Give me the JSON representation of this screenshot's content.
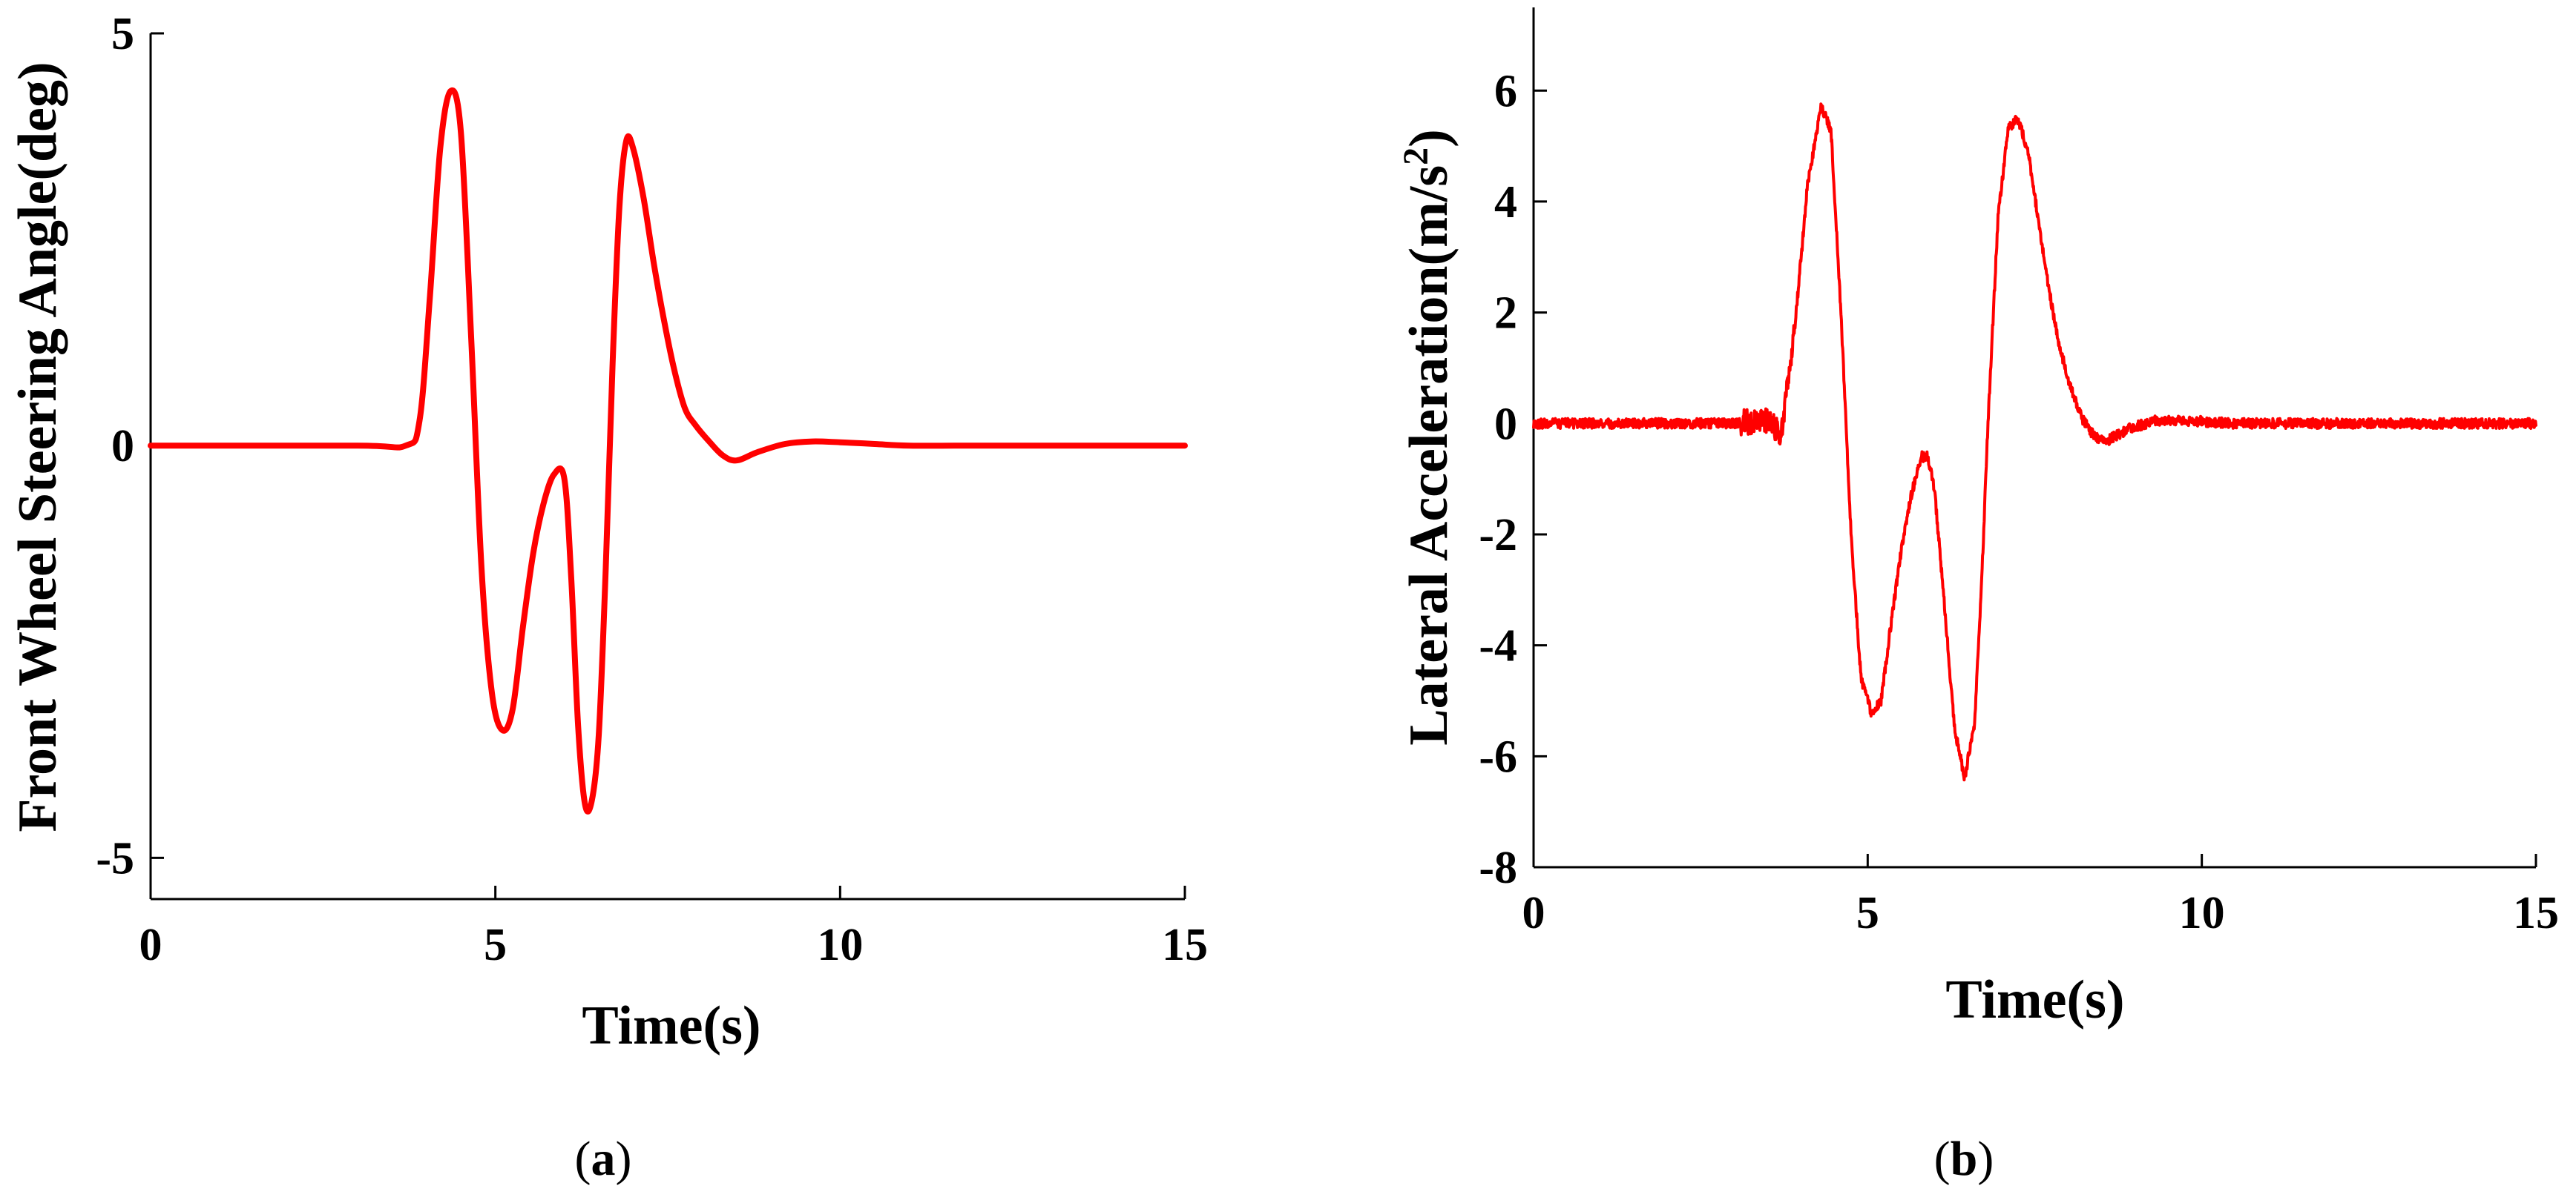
{
  "colors": {
    "line": "#ff0000",
    "axis": "#000000",
    "background": "#ffffff"
  },
  "chart_data": [
    {
      "type": "line",
      "panel_label": "(a)",
      "panel_letter": "a",
      "xlabel": "Time(s)",
      "ylabel": "Front Wheel Steering Angle(deg)",
      "ylabel_sup": "",
      "ylabel_tail": "",
      "xlim": [
        0,
        15
      ],
      "ylim": [
        -5.5,
        5
      ],
      "xticks": [
        0,
        5,
        10,
        15
      ],
      "xtick_labels": [
        "0",
        "5",
        "10",
        "15"
      ],
      "yticks": [
        -5,
        0,
        5
      ],
      "ytick_labels": [
        "-5",
        "0",
        "5"
      ],
      "grid": false,
      "series": [
        {
          "x": [
            0,
            3.0,
            3.7,
            3.9,
            4.05,
            4.2,
            4.35,
            4.5,
            4.65,
            4.8,
            4.95,
            5.1,
            5.25,
            5.4,
            5.55,
            5.7,
            5.85,
            6.0,
            6.1,
            6.2,
            6.3,
            6.4,
            6.5,
            6.6,
            6.7,
            6.8,
            6.9,
            7.0,
            7.15,
            7.3,
            7.45,
            7.6,
            7.75,
            7.9,
            8.1,
            8.3,
            8.5,
            8.8,
            9.2,
            9.6,
            10.0,
            10.5,
            11.0,
            12.0,
            13.0,
            14.0,
            15.0
          ],
          "y": [
            0,
            0,
            0,
            0.3,
            1.8,
            3.6,
            4.3,
            3.8,
            1.3,
            -1.5,
            -3.0,
            -3.45,
            -3.2,
            -2.2,
            -1.3,
            -0.7,
            -0.35,
            -0.4,
            -1.6,
            -3.4,
            -4.35,
            -4.3,
            -3.5,
            -1.5,
            1.0,
            2.9,
            3.7,
            3.6,
            3.0,
            2.2,
            1.5,
            0.9,
            0.45,
            0.25,
            0.05,
            -0.12,
            -0.18,
            -0.08,
            0.02,
            0.05,
            0.04,
            0.02,
            0.0,
            0.0,
            0.0,
            0.0,
            0.0
          ]
        }
      ]
    },
    {
      "type": "line",
      "panel_label": "(b)",
      "panel_letter": "b",
      "xlabel": "Time(s)",
      "ylabel": "Lateral Acceleration(m/s",
      "ylabel_sup": "2",
      "ylabel_tail": ")",
      "xlim": [
        0,
        15
      ],
      "ylim": [
        -8,
        7.5
      ],
      "xticks": [
        0,
        5,
        10,
        15
      ],
      "xtick_labels": [
        "0",
        "5",
        "10",
        "15"
      ],
      "yticks": [
        -8,
        -6,
        -4,
        -2,
        0,
        2,
        4,
        6
      ],
      "ytick_labels": [
        "-8",
        "-6",
        "-4",
        "-2",
        "0",
        "2",
        "4",
        "6"
      ],
      "grid": false,
      "noise": 0.09,
      "series": [
        {
          "x": [
            0,
            3.0,
            3.5,
            3.7,
            3.9,
            4.1,
            4.3,
            4.45,
            4.6,
            4.75,
            4.9,
            5.05,
            5.2,
            5.35,
            5.5,
            5.65,
            5.8,
            5.9,
            6.0,
            6.15,
            6.3,
            6.45,
            6.6,
            6.7,
            6.8,
            6.95,
            7.1,
            7.25,
            7.4,
            7.55,
            7.7,
            7.85,
            8.0,
            8.2,
            8.4,
            8.6,
            8.9,
            9.3,
            9.8,
            10.5,
            11.5,
            13.0,
            15.0
          ],
          "y": [
            0,
            0,
            0.05,
            -0.2,
            1.6,
            4.3,
            5.7,
            5.3,
            2.0,
            -2.0,
            -4.6,
            -5.2,
            -5.0,
            -3.6,
            -2.3,
            -1.3,
            -0.6,
            -0.6,
            -1.2,
            -3.3,
            -5.5,
            -6.4,
            -5.4,
            -3.0,
            0.0,
            3.7,
            5.3,
            5.5,
            4.9,
            3.7,
            2.5,
            1.5,
            0.8,
            0.1,
            -0.25,
            -0.3,
            -0.1,
            0.05,
            0.05,
            0.0,
            0.0,
            0.0,
            0.0
          ]
        }
      ]
    }
  ]
}
